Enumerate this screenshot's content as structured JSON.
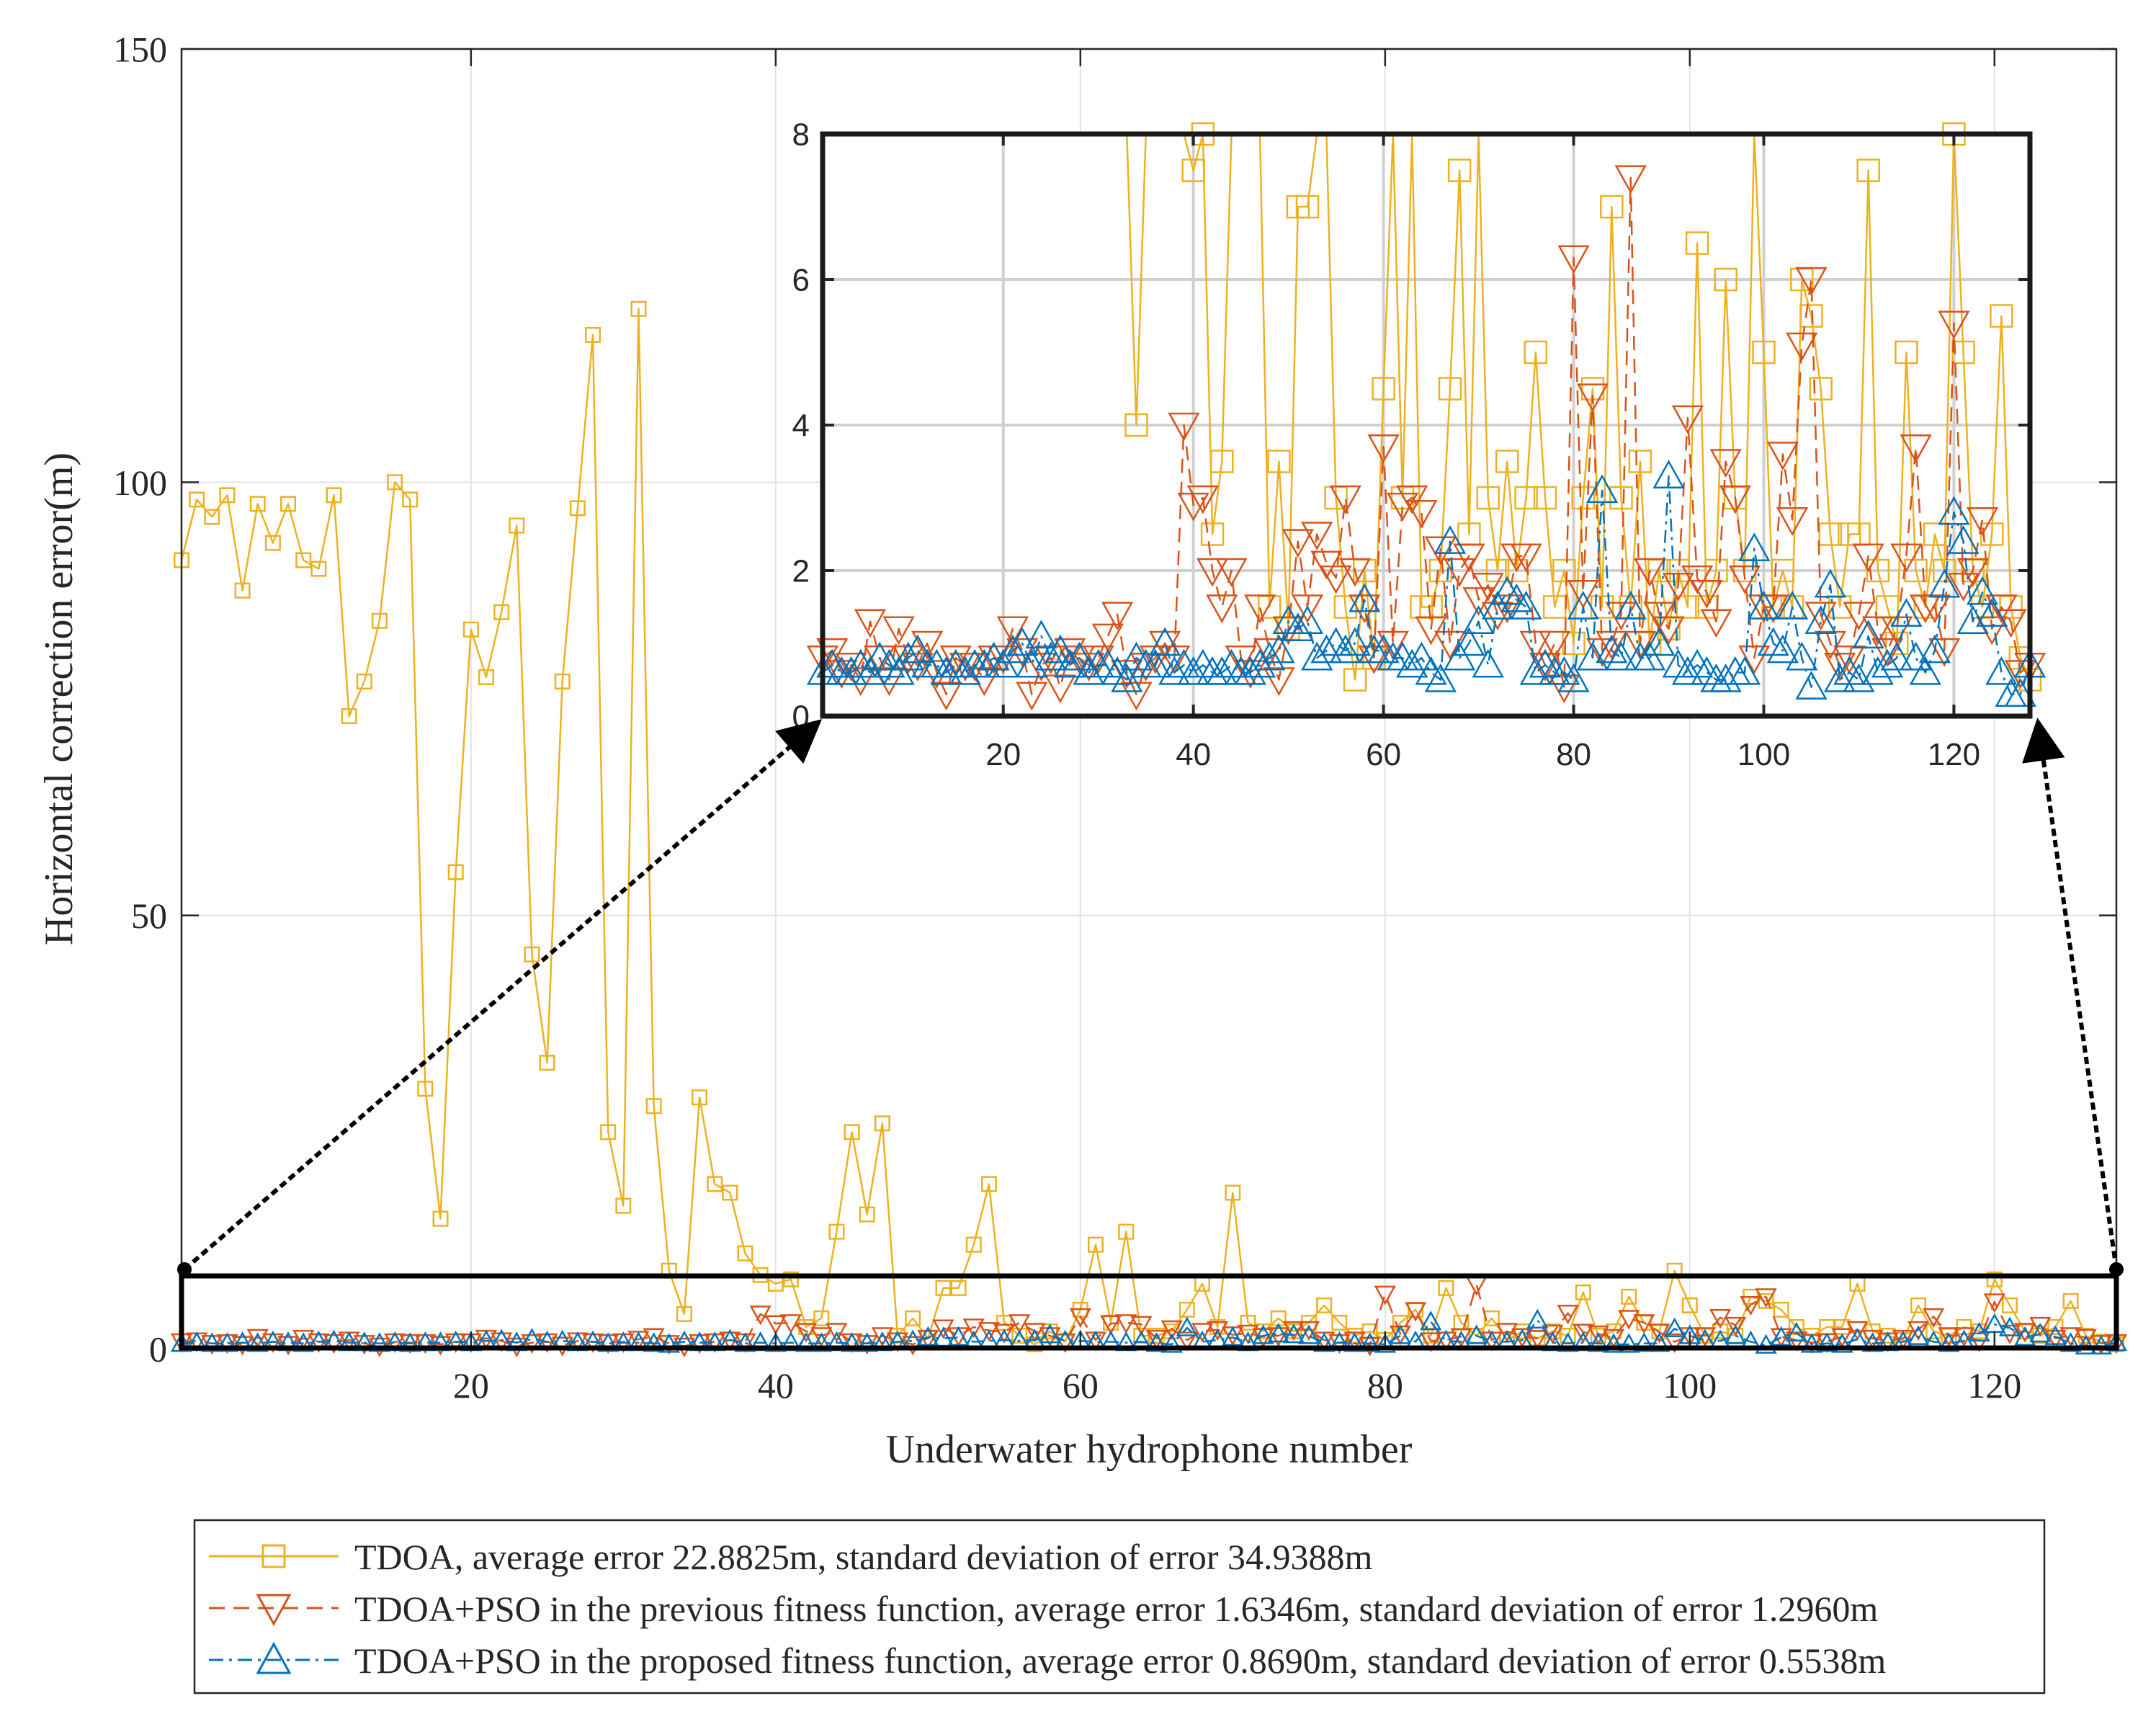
{
  "chart_data": {
    "type": "line",
    "xlabel": "Underwater hydrophone number",
    "ylabel": "Horizontal correction error(m)",
    "xlim": [
      1,
      128
    ],
    "ylim": [
      0,
      150
    ],
    "xticks": [
      20,
      40,
      60,
      80,
      100,
      120
    ],
    "yticks": [
      0,
      50,
      100,
      150
    ],
    "grid": true,
    "legend_position": "bottom-outside",
    "series": [
      {
        "name": "TDOA, average error 22.8825m, standard deviation of error 34.9388m",
        "color": "#EDB120",
        "marker": "square",
        "line": "solid",
        "values": [
          91,
          98,
          96,
          98.5,
          87.5,
          97.5,
          93,
          97.5,
          91,
          90,
          98.5,
          73,
          77,
          84,
          100,
          98,
          30,
          15,
          55,
          83,
          77.5,
          85,
          95,
          45.5,
          33,
          77,
          97,
          117,
          25,
          16.5,
          120,
          28,
          9,
          4,
          29,
          19,
          18,
          11,
          8.5,
          7.5,
          8,
          2.5,
          3.5,
          13.5,
          25,
          15.5,
          26,
          1.5,
          3.5,
          1.2,
          7,
          7,
          12,
          19,
          3,
          1.5,
          0.5,
          2,
          0.8,
          4.5,
          12,
          3,
          13.5,
          1.5,
          1.5,
          2,
          4.5,
          7.5,
          2.5,
          18,
          3,
          2,
          3.5,
          2,
          3,
          5,
          3,
          1.5,
          2,
          1,
          3,
          4.5,
          1.5,
          7,
          3,
          1.5,
          3.5,
          1,
          2,
          1.2,
          2,
          1.5,
          6.5,
          1.5,
          2,
          6,
          3,
          2,
          9,
          5,
          1.5,
          2,
          1.5,
          6,
          5.5,
          4.5,
          2.5,
          1.5,
          2.5,
          2.5,
          7.5,
          2,
          1.5,
          1,
          5,
          2,
          1.5,
          2.5,
          2,
          8,
          5,
          2,
          1.5,
          2.5,
          5.5,
          1.5,
          0.8,
          0.5
        ]
      },
      {
        "name": "TDOA+PSO in the previous fitness function, average error 1.6346m, standard deviation of error 1.2960m",
        "color": "#D95319",
        "marker": "triangle-down",
        "line": "dashed",
        "values": [
          0.8,
          0.9,
          0.6,
          0.7,
          0.5,
          1.3,
          0.8,
          0.5,
          1.2,
          0.8,
          0.7,
          1,
          0.6,
          0.3,
          0.8,
          0.7,
          0.7,
          0.5,
          0.8,
          0.8,
          1.2,
          0.9,
          0.3,
          0.7,
          0.8,
          0.4,
          0.9,
          0.8,
          0.7,
          0.8,
          1.1,
          1.4,
          0.6,
          0.3,
          0.7,
          0.8,
          1.0,
          0.8,
          4.0,
          2.9,
          3.0,
          2.0,
          1.5,
          2.0,
          0.8,
          0.6,
          1.5,
          0.9,
          0.5,
          1.2,
          2.4,
          1.5,
          2.5,
          2.1,
          1.9,
          3.0,
          2.0,
          1.5,
          0.8,
          3.7,
          1.0,
          2.9,
          3.0,
          2.8,
          1.2,
          2.3,
          1.0,
          2.0,
          2.2,
          1.6,
          1.8,
          1.4,
          1.5,
          2.2,
          2.2,
          1.0,
          0.7,
          1.0,
          0.4,
          6.3,
          1.7,
          4.4,
          0.9,
          1.0,
          1.4,
          7.4,
          1.0,
          2.0,
          1.4,
          1.2,
          1.8,
          4.1,
          1.9,
          1.7,
          1.3,
          3.5,
          3.0,
          1.9,
          0.8,
          1.5,
          1.5,
          3.6,
          2.7,
          5.1,
          6.0,
          1.4,
          1.0,
          0.7,
          0.8,
          1.4,
          2.2,
          1.2,
          0.9,
          1.2,
          2.2,
          3.7,
          1.5,
          1.5,
          0.9,
          5.4,
          1.8,
          2.0,
          2.7,
          1.2,
          1.5,
          1.3,
          0.6,
          0.7
        ]
      },
      {
        "name": "TDOA+PSO in the proposed fitness function, average error 0.8690m, standard deviation of error 0.5538m",
        "color": "#0072BD",
        "marker": "triangle-up",
        "line": "dash-dot",
        "values": [
          0.6,
          0.7,
          0.6,
          0.6,
          0.7,
          0.6,
          0.8,
          0.7,
          0.6,
          0.8,
          0.9,
          0.7,
          0.7,
          0.6,
          0.7,
          0.6,
          0.7,
          0.7,
          0.8,
          0.7,
          0.9,
          1.0,
          0.7,
          1.1,
          0.8,
          0.9,
          0.7,
          0.8,
          0.6,
          0.7,
          0.7,
          0.6,
          0.5,
          0.8,
          0.7,
          0.7,
          1.0,
          0.6,
          0.7,
          0.6,
          0.7,
          0.6,
          0.6,
          0.7,
          0.6,
          0.6,
          0.7,
          0.8,
          0.9,
          1.3,
          1.2,
          1.3,
          0.8,
          0.9,
          1.0,
          0.9,
          1.0,
          1.6,
          0.9,
          0.9,
          0.8,
          0.8,
          0.7,
          0.8,
          0.6,
          0.5,
          2.4,
          0.8,
          1.0,
          1.3,
          0.7,
          1.5,
          1.7,
          1.6,
          1.5,
          0.6,
          0.7,
          0.6,
          0.6,
          0.5,
          1.5,
          0.8,
          3.1,
          0.9,
          0.8,
          1.5,
          0.8,
          0.8,
          1.0,
          3.3,
          0.7,
          0.6,
          0.7,
          0.6,
          0.5,
          0.5,
          0.6,
          0.6,
          2.3,
          1.5,
          1.0,
          0.9,
          1.5,
          0.8,
          0.4,
          1.3,
          1.8,
          0.5,
          0.6,
          0.5,
          1.1,
          0.6,
          0.7,
          0.8,
          1.4,
          0.8,
          0.6,
          0.9,
          1.8,
          2.8,
          2.4,
          1.3,
          1.7,
          1.4,
          0.6,
          0.3,
          0.3,
          0.7
        ]
      }
    ],
    "inset": {
      "xlim": [
        1,
        128
      ],
      "ylim": [
        0,
        8
      ],
      "xticks": [
        20,
        40,
        60,
        80,
        100,
        120
      ],
      "yticks": [
        0,
        2,
        4,
        6,
        8
      ],
      "grid": true
    }
  },
  "legend": {
    "items": [
      {
        "label": "TDOA, average error 22.8825m, standard deviation of error 34.9388m"
      },
      {
        "label": "TDOA+PSO in the previous fitness function, average error 1.6346m, standard deviation of error 1.2960m"
      },
      {
        "label": "TDOA+PSO in the proposed fitness function, average error 0.8690m, standard deviation of error 0.5538m"
      }
    ]
  }
}
